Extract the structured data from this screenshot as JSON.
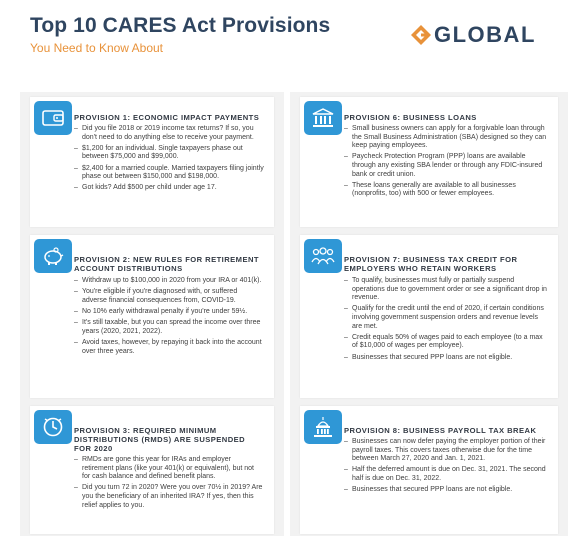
{
  "header": {
    "title": "Top 10 CARES Act Provisions",
    "subtitle": "You Need to Know About",
    "logo_text": "GLOBAL",
    "brand_color": "#2f4560",
    "accent_color": "#e8923a",
    "icon_color": "#2f97d6"
  },
  "provisions": [
    {
      "icon": "wallet-icon",
      "heading": "PROVISION 1: ECONOMIC IMPACT PAYMENTS",
      "items": [
        "Did you file 2018 or 2019 income tax returns? If so, you don't need to do anything else to receive your payment.",
        "$1,200 for an individual. Single taxpayers phase out between $75,000 and $99,000.",
        "$2,400 for a married couple. Married taxpayers filing jointly phase out between $150,000 and $198,000.",
        "Got kids? Add $500 per child under age 17."
      ]
    },
    {
      "icon": "piggy-bank-icon",
      "heading_lines": [
        "PROVISION 2: NEW RULES FOR RETIREMENT",
        "ACCOUNT DISTRIBUTIONS"
      ],
      "items": [
        "Withdraw up to $100,000 in 2020 from your IRA or 401(k).",
        "You're eligible if you're diagnosed with, or suffered adverse financial consequences from, COVID-19.",
        "No 10% early withdrawal penalty if you're under 59½.",
        "It's still taxable, but you can spread the income over three years (2020, 2021, 2022).",
        "Avoid taxes, however, by repaying it back into the account over three years."
      ]
    },
    {
      "icon": "clock-icon",
      "heading_lines": [
        "PROVISION 3: REQUIRED MINIMUM",
        "DISTRIBUTIONS (RMDS) ARE SUSPENDED",
        "FOR 2020"
      ],
      "items": [
        "RMDs are gone this year for IRAs and employer retirement plans (like your 401(k) or equivalent), but not for cash balance and defined benefit plans.",
        "Did you turn 72 in 2020? Were you over 70½ in 2019? Are you the beneficiary of an inherited IRA? If yes, then this relief applies to you."
      ]
    },
    {
      "icon": "bank-building-icon",
      "heading": "PROVISION 6: BUSINESS LOANS",
      "items": [
        "Small business owners can apply for a forgivable loan through the Small Business Administration (SBA) designed so they can keep paying employees.",
        "Paycheck Protection Program (PPP) loans are available through any existing SBA lender or through any FDIC-insured bank or credit union.",
        "These loans generally are available to all businesses (nonprofits, too) with 500 or fewer employees."
      ]
    },
    {
      "icon": "employees-icon",
      "heading_lines": [
        "PROVISION 7: BUSINESS TAX CREDIT FOR",
        "EMPLOYERS WHO RETAIN WORKERS"
      ],
      "items": [
        "To qualify, businesses must fully or partially suspend operations due to government order or see a significant drop in revenue.",
        "Qualify for the credit until the end of 2020, if certain conditions involving government suspension orders and revenue levels are met.",
        "Credit equals 50% of wages paid to each employee (to a max of $10,000 of wages per employee).",
        "Businesses that secured PPP loans are not eligible."
      ]
    },
    {
      "icon": "capitol-building-icon",
      "heading": "PROVISION 8: BUSINESS PAYROLL TAX BREAK",
      "items": [
        "Businesses can now defer paying the employer portion of their payroll taxes. This covers taxes otherwise due for the time between March 27, 2020 and Jan. 1, 2021.",
        "Half the deferred amount is due on Dec. 31, 2021. The second half is due on Dec. 31, 2022.",
        "Businesses that secured PPP loans are not eligible."
      ]
    }
  ]
}
